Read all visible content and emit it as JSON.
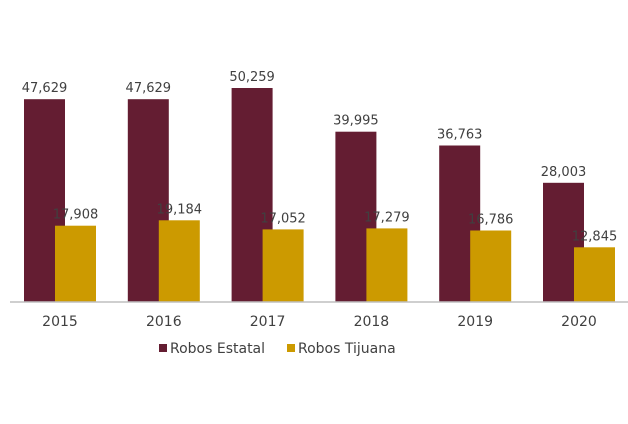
{
  "chart_data": {
    "type": "bar",
    "title": "",
    "xlabel": "",
    "ylabel": "",
    "categories": [
      "2015",
      "2016",
      "2017",
      "2018",
      "2019",
      "2020"
    ],
    "series": [
      {
        "name": "Robos Estatal",
        "color": "#641d32",
        "values": [
          47629,
          47629,
          50259,
          39995,
          36763,
          28003
        ],
        "labels": [
          "47,629",
          "47,629",
          "50,259",
          "39,995",
          "36,763",
          "28,003"
        ]
      },
      {
        "name": "Robos Tijuana",
        "color": "#cc9a00",
        "values": [
          17908,
          19184,
          17052,
          17279,
          16786,
          12845
        ],
        "labels": [
          "17,908",
          "19,184",
          "17,052",
          "17,279",
          "16,786",
          "12,845"
        ]
      }
    ],
    "ylim": [
      0,
      50259
    ],
    "grid": false,
    "legend_position": "bottom"
  }
}
